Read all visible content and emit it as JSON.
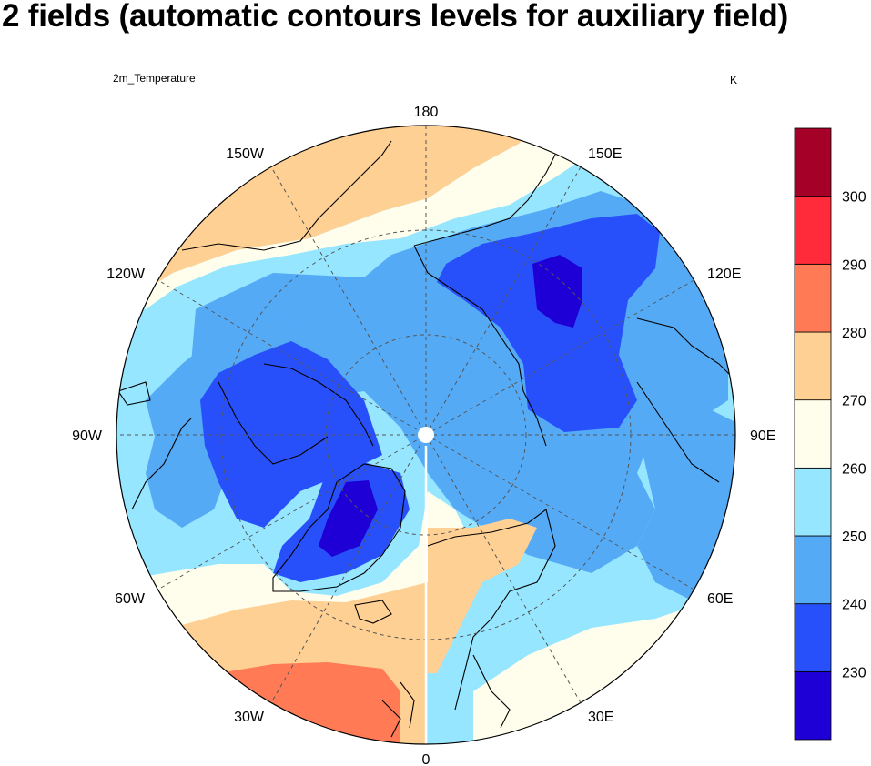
{
  "title": "2 fields (automatic contours levels for auxiliary field)",
  "field_label": "2m_Temperature",
  "units": "K",
  "longitude_labels": [
    "180",
    "150E",
    "120E",
    "90E",
    "60E",
    "30E",
    "0",
    "30W",
    "60W",
    "90W",
    "120W",
    "150W"
  ],
  "colorbar": {
    "tick_labels": [
      "230",
      "240",
      "250",
      "260",
      "270",
      "280",
      "290",
      "300"
    ],
    "colors": [
      "#1e00d6",
      "#2850fa",
      "#55aaf6",
      "#96e6ff",
      "#fffdec",
      "#ffd093",
      "#ff7a55",
      "#ff2a3a",
      "#a50028"
    ]
  },
  "colors": {
    "land_outline": "#000000",
    "graticule": "#555555"
  }
}
